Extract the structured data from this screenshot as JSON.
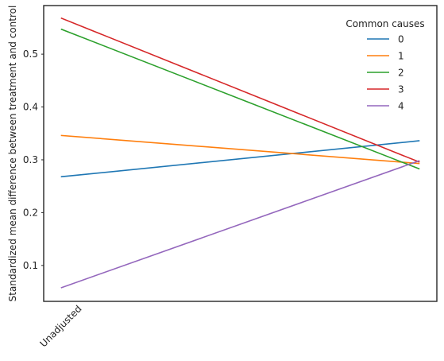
{
  "chart_data": {
    "type": "line",
    "title": "",
    "xlabel": "",
    "ylabel": "Standardized mean difference between treatment and control",
    "categories": [
      "Unadjusted",
      ""
    ],
    "xlim": [
      -0.05,
      1.05
    ],
    "ylim": [
      0.032,
      0.592
    ],
    "yticks": [
      0.1,
      0.2,
      0.3,
      0.4,
      0.5
    ],
    "ytick_labels": [
      "0.1",
      "0.2",
      "0.3",
      "0.4",
      "0.5"
    ],
    "grid": false,
    "legend": {
      "title": "Common causes",
      "placement": "top-right"
    },
    "series": [
      {
        "name": "0",
        "color": "#1f77b4",
        "values": [
          0.268,
          0.336
        ]
      },
      {
        "name": "1",
        "color": "#ff7f0e",
        "values": [
          0.346,
          0.293
        ]
      },
      {
        "name": "2",
        "color": "#2ca02c",
        "values": [
          0.547,
          0.283
        ]
      },
      {
        "name": "3",
        "color": "#d62728",
        "values": [
          0.568,
          0.296
        ]
      },
      {
        "name": "4",
        "color": "#9467bd",
        "values": [
          0.058,
          0.298
        ]
      }
    ]
  }
}
